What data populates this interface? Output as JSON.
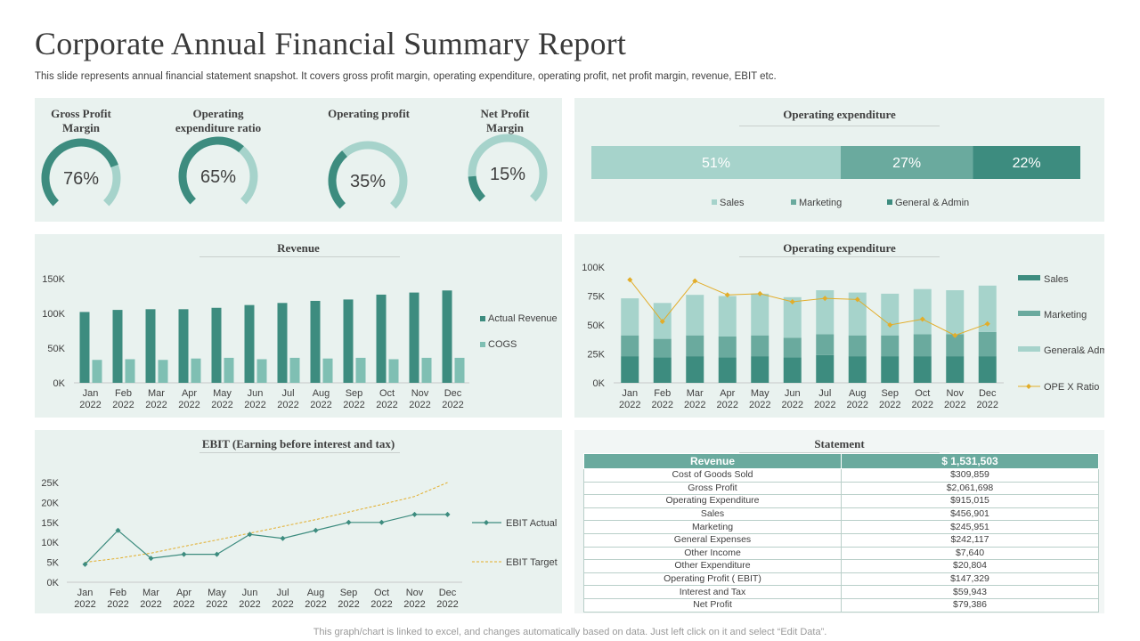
{
  "header": {
    "title": "Corporate Annual Financial Summary Report",
    "subtitle": "This slide represents annual financial statement snapshot. It covers gross profit margin, operating expenditure, operating profit, net profit margin, revenue, EBIT etc."
  },
  "footer": "This graph/chart is linked to excel, and changes automatically based on data. Just left click on it and select “Edit Data”.",
  "colors": {
    "dark_teal": "#3d8c7f",
    "mid_teal": "#6aaa9e",
    "light_teal": "#a6d3cb",
    "panel_bg": "#e9f2ef",
    "gold": "#e2ad2a"
  },
  "kpis": [
    {
      "label_line1": "Gross Profit",
      "label_line2": "Margin",
      "value_text": "76%",
      "value": 0.76
    },
    {
      "label_line1": "Operating",
      "label_line2": "expenditure ratio",
      "value_text": "65%",
      "value": 0.65
    },
    {
      "label_line1": "Operating profit",
      "label_line2": "",
      "value_text": "35%",
      "value": 0.35
    },
    {
      "label_line1": "Net Profit",
      "label_line2": "Margin",
      "value_text": "15%",
      "value": 0.15
    }
  ],
  "panels": {
    "opex_bar_title": "Operating expenditure",
    "revenue_title": "Revenue",
    "opex_chart_title": "Operating expenditure",
    "ebit_title": "EBIT (Earning before interest and tax)",
    "statement_title": "Statement"
  },
  "chart_data": [
    {
      "type": "bar",
      "title": "Operating expenditure",
      "stacked_100": true,
      "series": [
        {
          "name": "Sales",
          "value": 51,
          "label": "51%"
        },
        {
          "name": "Marketing",
          "value": 27,
          "label": "27%"
        },
        {
          "name": "General & Admin",
          "value": 22,
          "label": "22%"
        }
      ],
      "legend": "bottom"
    },
    {
      "type": "bar",
      "title": "Revenue",
      "categories": [
        "Jan 2022",
        "Feb 2022",
        "Mar 2022",
        "Apr 2022",
        "May 2022",
        "Jun 2022",
        "Jul 2022",
        "Aug 2022",
        "Sep 2022",
        "Oct 2022",
        "Nov 2022",
        "Dec 2022"
      ],
      "x_ticks": [
        [
          "Jan",
          "2022"
        ],
        [
          "Feb",
          "2022"
        ],
        [
          "Mar",
          "2022"
        ],
        [
          "Apr",
          "2022"
        ],
        [
          "May",
          "2022"
        ],
        [
          "Jun",
          "2022"
        ],
        [
          "Jul",
          "2022"
        ],
        [
          "Aug",
          "2022"
        ],
        [
          "Sep",
          "2022"
        ],
        [
          "Oct",
          "2022"
        ],
        [
          "Nov",
          "2022"
        ],
        [
          "Dec",
          "2022"
        ]
      ],
      "y_ticks": [
        "0K",
        "50K",
        "100K",
        "150K"
      ],
      "ylim": [
        0,
        150000
      ],
      "series": [
        {
          "name": "Actual Revenue",
          "values": [
            102000,
            105000,
            106000,
            106000,
            108000,
            112000,
            115000,
            118000,
            120000,
            127000,
            130000,
            133000
          ]
        },
        {
          "name": "COGS",
          "values": [
            33000,
            34000,
            33000,
            35000,
            36000,
            34000,
            36000,
            35000,
            36000,
            34000,
            36000,
            36000
          ]
        }
      ],
      "legend": "right"
    },
    {
      "type": "bar",
      "title": "Operating expenditure",
      "stacked": true,
      "categories": [
        "Jan 2022",
        "Feb 2022",
        "Mar 2022",
        "Apr 2022",
        "May 2022",
        "Jun 2022",
        "Jul 2022",
        "Aug 2022",
        "Sep 2022",
        "Oct 2022",
        "Nov 2022",
        "Dec 2022"
      ],
      "x_ticks": [
        [
          "Jan",
          "2022"
        ],
        [
          "Feb",
          "2022"
        ],
        [
          "Mar",
          "2022"
        ],
        [
          "Apr",
          "2022"
        ],
        [
          "May",
          "2022"
        ],
        [
          "Jun",
          "2022"
        ],
        [
          "Jul",
          "2022"
        ],
        [
          "Aug",
          "2022"
        ],
        [
          "Sep",
          "2022"
        ],
        [
          "Oct",
          "2022"
        ],
        [
          "Nov",
          "2022"
        ],
        [
          "Dec",
          "2022"
        ]
      ],
      "y_ticks": [
        "0K",
        "25K",
        "50K",
        "75K",
        "100K"
      ],
      "ylim": [
        0,
        100000
      ],
      "series": [
        {
          "name": "Sales",
          "values": [
            23000,
            22000,
            23000,
            22000,
            23000,
            22000,
            24000,
            23000,
            23000,
            23000,
            23000,
            23000
          ]
        },
        {
          "name": "Marketing",
          "values": [
            18000,
            16000,
            18000,
            18000,
            18000,
            17000,
            18000,
            18000,
            18000,
            19000,
            19000,
            21000
          ]
        },
        {
          "name": "General& Admin",
          "values": [
            32000,
            31000,
            35000,
            35000,
            36000,
            35000,
            38000,
            37000,
            36000,
            39000,
            38000,
            40000
          ]
        }
      ],
      "line_series": {
        "name": "OPE X Ratio",
        "values": [
          89000,
          53000,
          88000,
          76000,
          77000,
          70000,
          73000,
          72000,
          50000,
          55000,
          41000,
          51000
        ]
      },
      "legend": "right"
    },
    {
      "type": "line",
      "title": "EBIT (Earning before interest and tax)",
      "categories": [
        "Jan 2022",
        "Feb 2022",
        "Mar 2022",
        "Apr 2022",
        "May 2022",
        "Jun 2022",
        "Jul 2022",
        "Aug 2022",
        "Sep 2022",
        "Oct 2022",
        "Nov 2022",
        "Dec 2022"
      ],
      "x_ticks": [
        [
          "Jan",
          "2022"
        ],
        [
          "Feb",
          "2022"
        ],
        [
          "Mar",
          "2022"
        ],
        [
          "Apr",
          "2022"
        ],
        [
          "May",
          "2022"
        ],
        [
          "Jun",
          "2022"
        ],
        [
          "Jul",
          "2022"
        ],
        [
          "Aug",
          "2022"
        ],
        [
          "Sep",
          "2022"
        ],
        [
          "Oct",
          "2022"
        ],
        [
          "Nov",
          "2022"
        ],
        [
          "Dec",
          "2022"
        ]
      ],
      "y_ticks": [
        "0K",
        "5K",
        "10K",
        "15K",
        "20K",
        "25K"
      ],
      "ylim": [
        0,
        25000
      ],
      "series": [
        {
          "name": "EBIT Actual",
          "values": [
            4500,
            13000,
            6000,
            7000,
            7000,
            12000,
            11000,
            13000,
            15000,
            15000,
            17000,
            17000
          ]
        },
        {
          "name": "EBIT Target",
          "dashed": true,
          "values": [
            5000,
            6000,
            7300,
            9000,
            10600,
            12300,
            14000,
            15700,
            17600,
            19500,
            21500,
            25000
          ]
        }
      ],
      "legend": "right"
    }
  ],
  "statement": {
    "header": [
      "Revenue",
      "$ 1,531,503"
    ],
    "rows": [
      [
        "Cost of Goods Sold",
        "$309,859"
      ],
      [
        "Gross Profit",
        "$2,061,698"
      ],
      [
        "Operating Expenditure",
        "$915,015"
      ],
      [
        "Sales",
        "$456,901"
      ],
      [
        "Marketing",
        "$245,951"
      ],
      [
        "General Expenses",
        "$242,117"
      ],
      [
        "Other Income",
        "$7,640"
      ],
      [
        "Other Expenditure",
        "$20,804"
      ],
      [
        "Operating Profit ( EBIT)",
        "$147,329"
      ],
      [
        "Interest and Tax",
        "$59,943"
      ],
      [
        "Net Profit",
        "$79,386"
      ]
    ]
  }
}
